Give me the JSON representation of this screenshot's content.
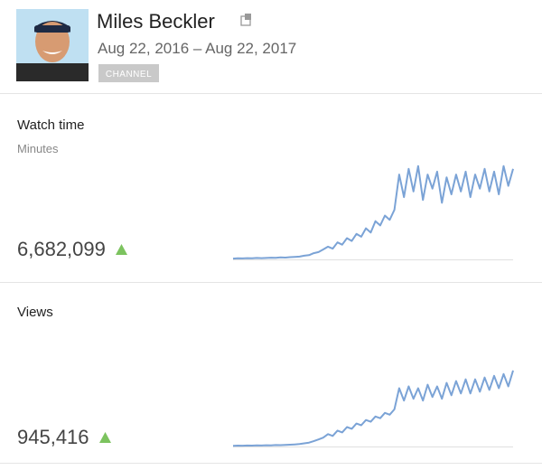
{
  "header": {
    "name": "Miles Beckler",
    "date_range": "Aug 22, 2016 – Aug 22, 2017",
    "badge": "CHANNEL"
  },
  "cards": [
    {
      "title": "Watch time",
      "subtitle": "Minutes",
      "total": "6,682,099",
      "sparkline": {
        "type": "line",
        "color": "#7ba3d6",
        "ylim": [
          0,
          38000
        ],
        "values": [
          300,
          400,
          350,
          450,
          400,
          500,
          450,
          500,
          600,
          550,
          700,
          650,
          800,
          900,
          1000,
          1300,
          1500,
          2200,
          2600,
          3500,
          4500,
          3800,
          6000,
          5200,
          7500,
          6500,
          9000,
          8000,
          11000,
          9500,
          13500,
          12000,
          15500,
          14000,
          17500,
          30000,
          22000,
          32000,
          24000,
          33000,
          21000,
          30000,
          25000,
          31000,
          20000,
          29000,
          23000,
          30000,
          24000,
          31000,
          22000,
          30000,
          25000,
          32000,
          24000,
          31000,
          23000,
          33000,
          26000,
          32000
        ]
      }
    },
    {
      "title": "Views",
      "total": "945,416",
      "sparkline": {
        "type": "line",
        "color": "#7ba3d6",
        "ylim": [
          0,
          4500
        ],
        "values": [
          40,
          50,
          45,
          55,
          50,
          60,
          55,
          70,
          65,
          80,
          75,
          90,
          100,
          120,
          140,
          180,
          220,
          300,
          400,
          500,
          700,
          600,
          900,
          800,
          1100,
          1000,
          1300,
          1200,
          1500,
          1400,
          1700,
          1600,
          1900,
          1800,
          2100,
          3300,
          2600,
          3400,
          2700,
          3300,
          2600,
          3500,
          2800,
          3400,
          2700,
          3600,
          2900,
          3700,
          3000,
          3800,
          3000,
          3800,
          3100,
          3900,
          3200,
          4000,
          3300,
          4100,
          3400,
          4300
        ]
      }
    }
  ]
}
